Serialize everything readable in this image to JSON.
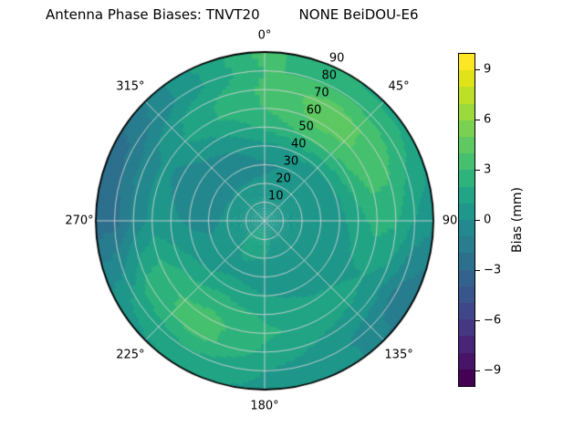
{
  "title": "Antenna Phase Biases: TNVT20         NONE BeiDOU-E6",
  "chart_data": {
    "type": "heatmap",
    "projection": "polar",
    "title": "Antenna Phase Biases: TNVT20  NONE BeiDOU-E6",
    "theta_tick_labels": [
      {
        "deg": 0,
        "label": "0°"
      },
      {
        "deg": 45,
        "label": "45°"
      },
      {
        "deg": 90,
        "label": "90"
      },
      {
        "deg": 135,
        "label": "135°"
      },
      {
        "deg": 180,
        "label": "180°"
      },
      {
        "deg": 225,
        "label": "225°"
      },
      {
        "deg": 270,
        "label": "270°"
      },
      {
        "deg": 315,
        "label": "315°"
      }
    ],
    "radial_tick_labels": [
      "10",
      "20",
      "30",
      "40",
      "50",
      "60",
      "70",
      "80",
      "90"
    ],
    "radial_max": 90,
    "radial_label_angle_deg": 24,
    "gridlines": {
      "color": "rgba(210,210,210,0.9)",
      "zenith_circle_step": 10,
      "spoke_step_deg": 45,
      "outline_color": "#000000"
    },
    "colorbar": {
      "label": "Bias (mm)",
      "tick_values": [
        9,
        6,
        3,
        0,
        -3,
        -6,
        -9
      ],
      "tick_labels": [
        "9",
        "6",
        "3",
        "0",
        "−3",
        "−6",
        "−9"
      ],
      "vmin": -10,
      "vmax": 10,
      "level_step": 1,
      "colors": [
        "#440154",
        "#481467",
        "#482576",
        "#453781",
        "#3f4788",
        "#39568c",
        "#33638d",
        "#2d708e",
        "#287d8e",
        "#23898e",
        "#1f978b",
        "#21a585",
        "#2eb37c",
        "#46c06f",
        "#5ec962",
        "#7ad151",
        "#9bd93c",
        "#bddf26",
        "#dfe318",
        "#fde725"
      ]
    },
    "grid": {
      "units": "mm",
      "azimuth_deg": [
        0,
        30,
        60,
        90,
        120,
        150,
        180,
        210,
        240,
        270,
        300,
        330
      ],
      "zenith_deg": [
        0,
        10,
        20,
        30,
        40,
        50,
        60,
        70,
        80,
        90
      ],
      "bias_mm": [
        [
          0.5,
          0.5,
          0.5,
          0.5,
          0.5,
          0.5,
          0.5,
          0.5,
          0.5,
          0.5,
          0.5,
          0.5
        ],
        [
          0.4,
          0.4,
          0.4,
          0.5,
          0.6,
          0.8,
          1.2,
          1.6,
          0.8,
          0.4,
          0.3,
          0.3
        ],
        [
          0.2,
          0.3,
          0.4,
          0.4,
          0.4,
          0.7,
          1.0,
          1.2,
          0.6,
          0.2,
          0.1,
          0.1
        ],
        [
          -0.2,
          0.2,
          0.3,
          0.2,
          0.0,
          0.3,
          0.5,
          0.7,
          0.3,
          -0.3,
          -0.5,
          -0.4
        ],
        [
          0.6,
          1.2,
          1.0,
          0.6,
          0.3,
          0.6,
          1.0,
          1.5,
          0.8,
          -0.2,
          -0.6,
          -0.2
        ],
        [
          2.2,
          3.2,
          2.6,
          1.6,
          0.8,
          1.2,
          1.8,
          2.6,
          1.8,
          0.2,
          -0.3,
          0.8
        ],
        [
          3.0,
          4.4,
          3.8,
          2.4,
          1.0,
          1.6,
          2.2,
          3.4,
          2.8,
          0.4,
          0.2,
          1.8
        ],
        [
          3.2,
          4.6,
          3.6,
          2.2,
          0.4,
          0.8,
          1.8,
          3.4,
          2.6,
          -0.8,
          -0.4,
          1.6
        ],
        [
          3.0,
          3.0,
          2.6,
          1.0,
          -1.4,
          0.2,
          1.0,
          2.0,
          1.2,
          -2.4,
          -1.8,
          0.4
        ],
        [
          3.4,
          2.0,
          1.6,
          0.2,
          -2.0,
          0.6,
          0.8,
          1.2,
          0.6,
          -2.6,
          -2.4,
          0.6
        ]
      ]
    }
  }
}
